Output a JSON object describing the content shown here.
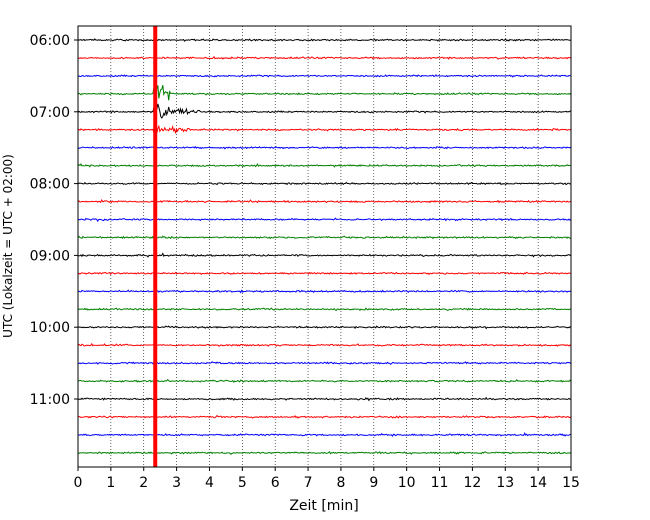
{
  "chart_data": {
    "type": "line",
    "title": "",
    "xlabel": "Zeit  [min]",
    "ylabel": "UTC (Lokalzeit = UTC + 02:00)",
    "xlim": [
      0,
      15
    ],
    "x_ticks": [
      0,
      1,
      2,
      3,
      4,
      5,
      6,
      7,
      8,
      9,
      10,
      11,
      12,
      13,
      14,
      15
    ],
    "y_tick_labels": [
      "06:00",
      "07:00",
      "08:00",
      "09:00",
      "10:00",
      "11:00"
    ],
    "y_tick_trace_index": [
      0,
      4,
      8,
      12,
      16,
      20
    ],
    "grid": "vertical dotted at every minute",
    "trace_interval_minutes": 15,
    "trace_start": "05:45",
    "trace_colors": [
      "#000000",
      "#ff0000",
      "#0000ff",
      "#008000"
    ],
    "trace_count": 24,
    "event": {
      "start_minute": 2.35,
      "traces": [
        1,
        2,
        3,
        4,
        5,
        6,
        7,
        8,
        9,
        10,
        11,
        12,
        13,
        14,
        15,
        16,
        17,
        18,
        19,
        20,
        21,
        22,
        23
      ],
      "color": "#ff0000"
    }
  }
}
